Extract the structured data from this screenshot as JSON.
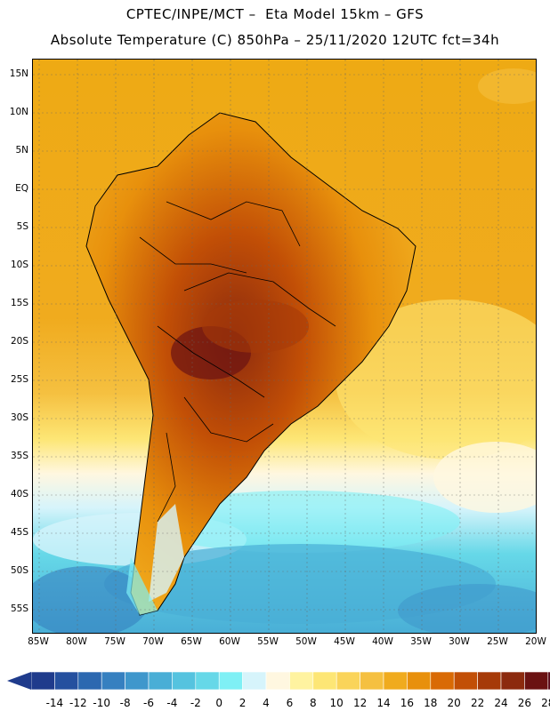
{
  "title_line1": "CPTEC/INPE/MCT –  Eta Model 15km – GFS",
  "title_line2": "Absolute Temperature (C) 850hPa – 25/11/2020 12UTC fct=34h",
  "lat_labels": [
    "15N",
    "10N",
    "5N",
    "EQ",
    "5S",
    "10S",
    "15S",
    "20S",
    "25S",
    "30S",
    "35S",
    "40S",
    "45S",
    "50S",
    "55S"
  ],
  "lon_labels": [
    "85W",
    "80W",
    "75W",
    "70W",
    "65W",
    "60W",
    "55W",
    "50W",
    "45W",
    "40W",
    "35W",
    "30W",
    "25W",
    "20W"
  ],
  "colorbar": {
    "labels": [
      "-14",
      "-12",
      "-10",
      "-8",
      "-6",
      "-4",
      "-2",
      "0",
      "2",
      "4",
      "6",
      "8",
      "10",
      "12",
      "14",
      "16",
      "18",
      "20",
      "22",
      "24",
      "26",
      "28"
    ],
    "colors": [
      "#1f3b8c",
      "#25509f",
      "#2c68b0",
      "#3680c0",
      "#3f97cc",
      "#49aed6",
      "#55c3df",
      "#66d8e8",
      "#7ff0f5",
      "#d6f4fb",
      "#fff7e0",
      "#fff3a0",
      "#fde675",
      "#fad45a",
      "#f5c040",
      "#f0ab1e",
      "#e8900c",
      "#d96a05",
      "#c24f06",
      "#a63a08",
      "#8c2a0e",
      "#6b1212",
      "#5a0a1a"
    ]
  },
  "colors": {
    "ocean_warm": "#eeaa14",
    "ocean_mid": "#f3c13a",
    "ocean_pale": "#fff7e0",
    "ocean_cold": "#66d8e8",
    "land_hot": "#a63a08",
    "land_mid": "#d96a05",
    "land_very_hot": "#6b1212"
  }
}
